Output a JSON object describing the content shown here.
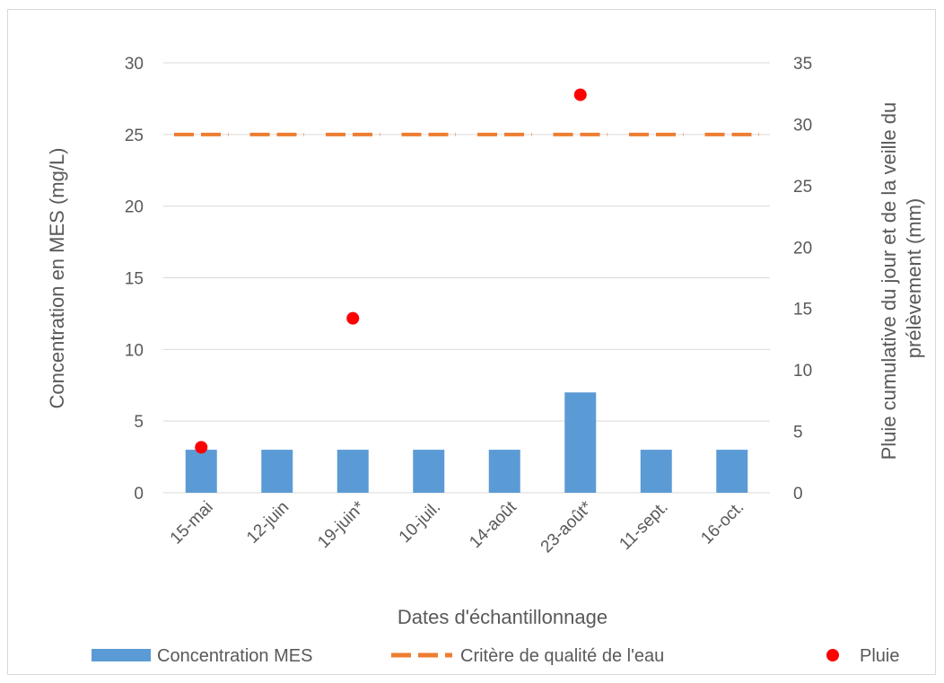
{
  "chart_data": {
    "type": "bar",
    "title": "",
    "categories": [
      "15-mai",
      "12-juin",
      "19-juin*",
      "10-juil.",
      "14-août",
      "23-août*",
      "11-sept.",
      "16-oct."
    ],
    "series": [
      {
        "name": "Concentration MES",
        "type": "bar",
        "axis": "left",
        "color": "#5b9bd5",
        "values": [
          3,
          3,
          3,
          3,
          3,
          7,
          3,
          3
        ]
      },
      {
        "name": "Critère de qualité de l'eau",
        "type": "line",
        "style": "dashed",
        "axis": "left",
        "color": "#ed7d31",
        "values": [
          25,
          25,
          25,
          25,
          25,
          25,
          25,
          25
        ]
      },
      {
        "name": "Pluie",
        "type": "scatter",
        "axis": "right",
        "color": "#ff0000",
        "values": [
          3.7,
          null,
          14.2,
          null,
          null,
          32.4,
          null,
          null
        ]
      }
    ],
    "xlabel": "Dates d'échantillonnage",
    "ylabel": "Concentration en MES (mg/L)",
    "y2label_lines": [
      "Pluie cumulative du jour et de la veille du",
      "prélèvement (mm)"
    ],
    "ylim": [
      0,
      30
    ],
    "y2lim": [
      0,
      35
    ],
    "yticks": [
      "0",
      "5",
      "10",
      "15",
      "20",
      "25",
      "30"
    ],
    "y2ticks": [
      "0",
      "5",
      "10",
      "15",
      "20",
      "25",
      "30",
      "35"
    ],
    "grid": true,
    "legend_position": "bottom"
  }
}
